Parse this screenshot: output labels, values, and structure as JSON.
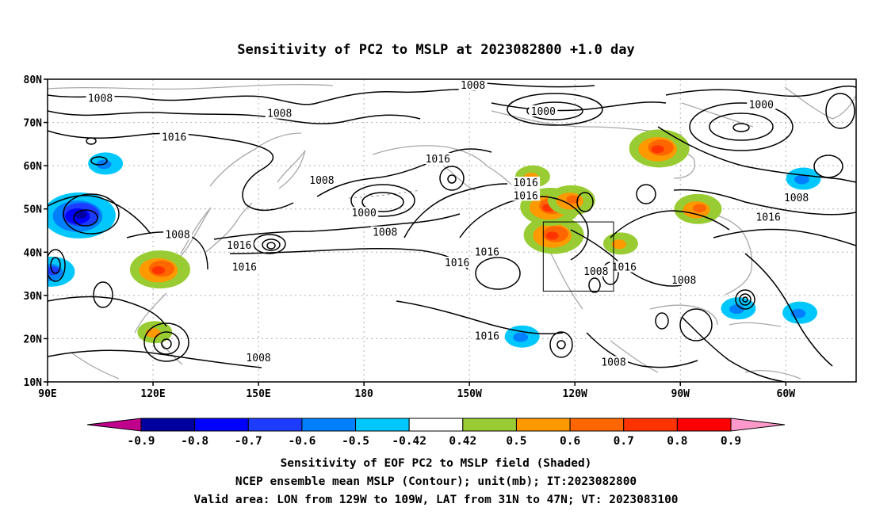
{
  "title": "Sensitivity of PC2 to MSLP at 2023082800 +1.0 day",
  "map": {
    "lon_labels": [
      "90E",
      "120E",
      "150E",
      "180",
      "150W",
      "120W",
      "90W",
      "60W"
    ],
    "lon_values": [
      90,
      120,
      150,
      180,
      210,
      240,
      270,
      300
    ],
    "lat_labels": [
      "80N",
      "70N",
      "60N",
      "50N",
      "40N",
      "30N",
      "20N",
      "10N"
    ],
    "lat_values": [
      80,
      70,
      60,
      50,
      40,
      30,
      20,
      10
    ],
    "lon_range": [
      90,
      320
    ],
    "lat_range": [
      10,
      80
    ],
    "valid_box": {
      "lon": [
        231,
        251
      ],
      "lat": [
        31,
        47
      ]
    },
    "contour_labels": [
      {
        "text": "1008",
        "lon": 105,
        "lat": 75.5
      },
      {
        "text": "1008",
        "lon": 156,
        "lat": 72
      },
      {
        "text": "1016",
        "lon": 126,
        "lat": 66.5
      },
      {
        "text": "1008",
        "lon": 211,
        "lat": 78.5
      },
      {
        "text": "1000",
        "lon": 231,
        "lat": 72.5
      },
      {
        "text": "1000",
        "lon": 293,
        "lat": 74
      },
      {
        "text": "1016",
        "lon": 201,
        "lat": 61.5
      },
      {
        "text": "1008",
        "lon": 168,
        "lat": 56.5
      },
      {
        "text": "1016",
        "lon": 226,
        "lat": 56
      },
      {
        "text": "1016",
        "lon": 226,
        "lat": 53
      },
      {
        "text": "1000",
        "lon": 180,
        "lat": 49
      },
      {
        "text": "1008",
        "lon": 186,
        "lat": 44.5
      },
      {
        "text": "1008",
        "lon": 127,
        "lat": 44
      },
      {
        "text": "1016",
        "lon": 144.5,
        "lat": 41.5
      },
      {
        "text": "1016",
        "lon": 146,
        "lat": 36.5
      },
      {
        "text": "1016",
        "lon": 215,
        "lat": 40
      },
      {
        "text": "1016",
        "lon": 206.5,
        "lat": 37.5
      },
      {
        "text": "1008",
        "lon": 246,
        "lat": 35.5
      },
      {
        "text": "1016",
        "lon": 254,
        "lat": 36.5
      },
      {
        "text": "1008",
        "lon": 271,
        "lat": 33.5
      },
      {
        "text": "1016",
        "lon": 295,
        "lat": 48
      },
      {
        "text": "1008",
        "lon": 303,
        "lat": 52.5
      },
      {
        "text": "1016",
        "lon": 215,
        "lat": 20.5
      },
      {
        "text": "1008",
        "lon": 150,
        "lat": 15.5
      },
      {
        "text": "1008",
        "lon": 251,
        "lat": 14.5
      }
    ],
    "positive_shading": [
      {
        "lon": 122,
        "lat": 36,
        "lv": [
          0.5,
          0.6,
          0.7
        ]
      },
      {
        "lon": 234,
        "lat": 44,
        "lv": [
          0.5,
          0.6,
          0.7
        ]
      },
      {
        "lon": 233,
        "lat": 50.5,
        "lv": [
          0.5,
          0.6,
          0.7
        ]
      },
      {
        "lon": 239,
        "lat": 52,
        "lv": [
          0.5,
          0.6
        ]
      },
      {
        "lon": 228,
        "lat": 57.5,
        "lv": [
          0.5
        ]
      },
      {
        "lon": 253,
        "lat": 42,
        "lv": [
          0.5
        ]
      },
      {
        "lon": 264,
        "lat": 64,
        "lv": [
          0.5,
          0.6,
          0.7
        ]
      },
      {
        "lon": 275,
        "lat": 50,
        "lv": [
          0.5,
          0.6
        ]
      },
      {
        "lon": 120.5,
        "lat": 21.5,
        "lv": [
          0.5
        ]
      }
    ],
    "negative_shading": [
      {
        "lon": 99,
        "lat": 48.5,
        "lv": [
          -0.5,
          -0.6,
          -0.7,
          -0.8
        ]
      },
      {
        "lon": 91,
        "lat": 35.5,
        "lv": [
          -0.5,
          -0.6
        ]
      },
      {
        "lon": 286.5,
        "lat": 27,
        "lv": [
          -0.5
        ]
      },
      {
        "lon": 304,
        "lat": 26,
        "lv": [
          -0.5
        ]
      },
      {
        "lon": 225,
        "lat": 20.5,
        "lv": [
          -0.5
        ]
      },
      {
        "lon": 106.5,
        "lat": 60.5,
        "lv": [
          -0.5
        ]
      },
      {
        "lon": 305,
        "lat": 57,
        "lv": [
          -0.5
        ]
      }
    ]
  },
  "colorbar": {
    "labels": [
      "-0.9",
      "-0.8",
      "-0.7",
      "-0.6",
      "-0.5",
      "-0.42",
      "0.42",
      "0.5",
      "0.6",
      "0.7",
      "0.8",
      "0.9"
    ],
    "colors": [
      "#c0008c",
      "#0000a0",
      "#0000ff",
      "#1e3cff",
      "#0080ff",
      "#00c8ff",
      "#ffffff",
      "#99cc33",
      "#ff9900",
      "#ff6600",
      "#ff3300",
      "#ff0000",
      "#ff99cc"
    ]
  },
  "captions": [
    "Sensitivity of EOF PC2 to MSLP field (Shaded)",
    "NCEP ensemble mean MSLP (Contour); unit(mb); IT:2023082800",
    "Valid area: LON from 129W to 109W, LAT from 31N to 47N; VT: 2023083100"
  ]
}
